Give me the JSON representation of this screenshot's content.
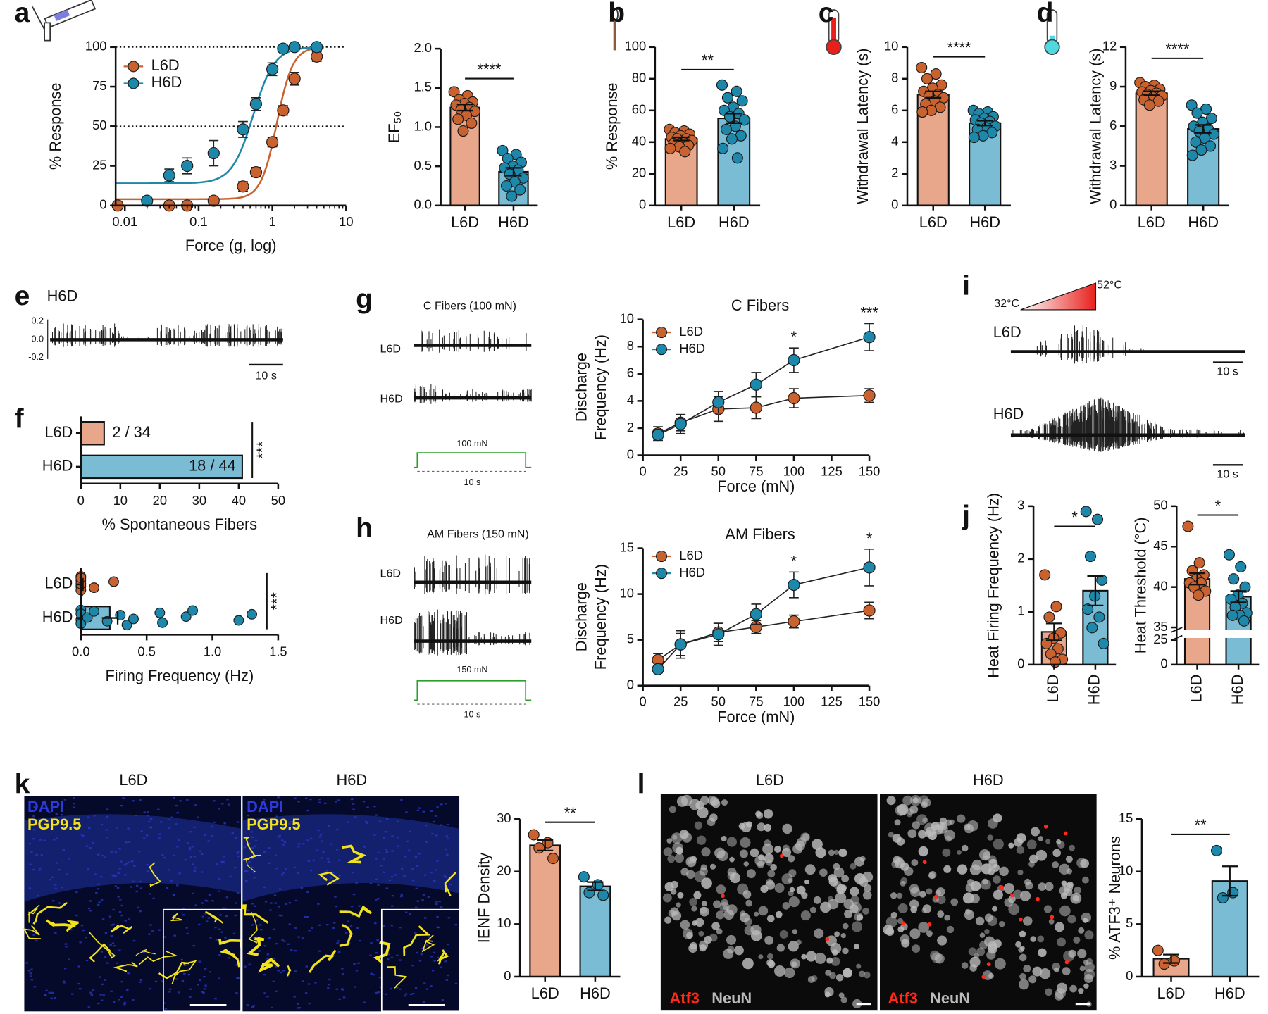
{
  "figure": {
    "panel_letters": [
      "a",
      "b",
      "c",
      "d",
      "e",
      "f",
      "g",
      "h",
      "i",
      "j",
      "k",
      "l"
    ],
    "e_trace": {
      "label": "H6D",
      "yticks": [
        "0.2",
        "0.0",
        "-0.2"
      ],
      "scale": "10 s"
    },
    "g_trace": {
      "title": "C Fibers (100 mN)",
      "rows": [
        "L6D",
        "H6D"
      ],
      "stimulus": "100 mN",
      "duration": "10 s"
    },
    "h_trace": {
      "title": "AM Fibers (150 mN)",
      "rows": [
        "L6D",
        "H6D"
      ],
      "stimulus": "150 mN",
      "duration": "10 s"
    },
    "i_trace": {
      "start": "32°C",
      "end": "52°C",
      "rows": [
        "L6D",
        "H6D"
      ],
      "scale": "10 s"
    },
    "k_images": {
      "titles": [
        "L6D",
        "H6D"
      ],
      "stains": [
        "DAPI",
        "PGP9.5"
      ]
    },
    "l_images": {
      "titles": [
        "L6D",
        "H6D"
      ],
      "stains": [
        "Atf3",
        "NeuN"
      ]
    }
  },
  "chart_data": [
    {
      "type": "line",
      "xscale": "log",
      "ylabel": "% Response",
      "xlabel": "Force (g, log)",
      "xlim": [
        0.0075,
        10
      ],
      "xticks": [
        0.01,
        0.1,
        1,
        10
      ],
      "ylim": [
        0,
        100
      ],
      "yticks": [
        0,
        25,
        50,
        75,
        100
      ],
      "reference_lines": [
        50,
        100
      ],
      "series": [
        {
          "name": "L6D",
          "color": "#c9622f",
          "x": [
            0.008,
            0.04,
            0.07,
            0.16,
            0.4,
            0.6,
            1,
            1.4,
            2,
            4
          ],
          "values": [
            0,
            0,
            0,
            3,
            12,
            21,
            40,
            60,
            80,
            94
          ],
          "errors": [
            0,
            0,
            0,
            0,
            3,
            3,
            3,
            3,
            4,
            3
          ],
          "fit": {
            "bottom": 4,
            "top": 100,
            "ec50": 1.15,
            "hill": 4
          }
        },
        {
          "name": "H6D",
          "color": "#1e88aa",
          "x": [
            0.02,
            0.04,
            0.07,
            0.16,
            0.4,
            0.6,
            1,
            1.4,
            2,
            4
          ],
          "values": [
            3,
            19,
            25,
            33,
            48,
            64,
            86,
            99,
            100,
            100
          ],
          "errors": [
            0,
            4,
            5,
            8,
            5,
            4,
            4,
            2,
            0,
            0
          ],
          "fit": {
            "bottom": 14,
            "top": 100,
            "ec50": 0.55,
            "hill": 3
          }
        }
      ]
    },
    {
      "type": "bar",
      "ylabel": "EF₅₀",
      "categories": [
        "L6D",
        "H6D"
      ],
      "values": [
        1.25,
        0.43
      ],
      "errors": [
        0.04,
        0.05
      ],
      "ylim": [
        0,
        2
      ],
      "yticks": [
        {
          "value": 0,
          "label": "0.0"
        },
        {
          "value": 0.5,
          "label": "0.5"
        },
        {
          "value": 1,
          "label": "1.0"
        },
        {
          "value": 1.5,
          "label": "1.5"
        },
        {
          "value": 2,
          "label": "2.0"
        }
      ],
      "colors": [
        "#e8a68a",
        "#79bcd3"
      ],
      "point_colors": [
        "#c9622f",
        "#1e88aa"
      ],
      "significance": "****",
      "points": [
        [
          1.45,
          1.4,
          1.35,
          1.32,
          1.3,
          1.28,
          1.25,
          1.22,
          1.2,
          1.15,
          1.1,
          1.05,
          0.95
        ],
        [
          0.7,
          0.65,
          0.6,
          0.55,
          0.5,
          0.48,
          0.45,
          0.4,
          0.35,
          0.3,
          0.25,
          0.2,
          0.12
        ]
      ]
    },
    {
      "type": "bar",
      "ylabel": "% Response",
      "categories": [
        "L6D",
        "H6D"
      ],
      "values": [
        42,
        55
      ],
      "errors": [
        1,
        3
      ],
      "ylim": [
        0,
        100
      ],
      "yticks": [
        0,
        20,
        40,
        60,
        80,
        100
      ],
      "colors": [
        "#e8a68a",
        "#79bcd3"
      ],
      "point_colors": [
        "#c9622f",
        "#1e88aa"
      ],
      "significance": "**",
      "points": [
        [
          48,
          47,
          46,
          45,
          44,
          43,
          42,
          42,
          41,
          40,
          39,
          38,
          37,
          36,
          34
        ],
        [
          76,
          72,
          68,
          66,
          62,
          60,
          58,
          56,
          54,
          50,
          48,
          44,
          42,
          36,
          30
        ]
      ]
    },
    {
      "type": "bar",
      "ylabel": "Withdrawal Latency (s)",
      "categories": [
        "L6D",
        "H6D"
      ],
      "values": [
        7.0,
        5.2
      ],
      "errors": [
        0.2,
        0.15
      ],
      "ylim": [
        0,
        10
      ],
      "yticks": [
        0,
        2,
        4,
        6,
        8,
        10
      ],
      "colors": [
        "#e8a68a",
        "#79bcd3"
      ],
      "point_colors": [
        "#c9622f",
        "#1e88aa"
      ],
      "significance": "****",
      "points": [
        [
          8.7,
          8.3,
          8.0,
          7.6,
          7.4,
          7.2,
          7.0,
          6.9,
          6.8,
          6.6,
          6.4,
          6.2,
          6.0,
          5.9
        ],
        [
          6.0,
          5.9,
          5.8,
          5.6,
          5.5,
          5.4,
          5.3,
          5.2,
          5.0,
          4.9,
          4.8,
          4.6,
          4.4,
          4.3
        ]
      ]
    },
    {
      "type": "bar",
      "ylabel": "Withdrawal Latency (s)",
      "categories": [
        "L6D",
        "H6D"
      ],
      "values": [
        8.5,
        5.8
      ],
      "errors": [
        0.15,
        0.3
      ],
      "ylim": [
        0,
        12
      ],
      "yticks": [
        0,
        3,
        6,
        9,
        12
      ],
      "colors": [
        "#e8a68a",
        "#79bcd3"
      ],
      "point_colors": [
        "#c9622f",
        "#1e88aa"
      ],
      "significance": "****",
      "points": [
        [
          9.3,
          9.1,
          9.0,
          8.8,
          8.7,
          8.6,
          8.5,
          8.4,
          8.3,
          8.2,
          8.0,
          7.9,
          7.6
        ],
        [
          7.6,
          7.3,
          7.0,
          6.6,
          6.3,
          6.0,
          5.8,
          5.6,
          5.4,
          5.1,
          4.8,
          4.5,
          4.2,
          3.8
        ]
      ]
    },
    {
      "type": "hbar",
      "xlabel": "% Spontaneous Fibers",
      "categories": [
        "L6D",
        "H6D"
      ],
      "values": [
        5.9,
        40.9
      ],
      "value_labels": [
        "2 / 34",
        "18 / 44"
      ],
      "xlim": [
        0,
        50
      ],
      "xticks": [
        0,
        10,
        20,
        30,
        40,
        50
      ],
      "colors": [
        "#e8a68a",
        "#79bcd3"
      ],
      "significance": "***"
    },
    {
      "type": "hbar",
      "xlabel": "Firing Frequency (Hz)",
      "categories": [
        "L6D",
        "H6D"
      ],
      "values": [
        0.01,
        0.22
      ],
      "errors": [
        0.005,
        0.06
      ],
      "xlim": [
        0,
        1.5
      ],
      "xticks": [
        {
          "value": 0,
          "label": "0.0"
        },
        {
          "value": 0.5,
          "label": "0.5"
        },
        {
          "value": 1,
          "label": "1.0"
        },
        {
          "value": 1.5,
          "label": "1.5"
        }
      ],
      "colors": [
        "#e8a68a",
        "#79bcd3"
      ],
      "point_colors": [
        "#c9622f",
        "#1e88aa"
      ],
      "significance": "***",
      "points": [
        [
          0,
          0,
          0,
          0,
          0,
          0,
          0.1,
          0.25
        ],
        [
          0,
          0,
          0,
          0,
          0.05,
          0.1,
          0.2,
          0.3,
          0.35,
          0.4,
          0.6,
          0.62,
          0.8,
          0.85,
          1.2,
          1.3
        ]
      ]
    },
    {
      "type": "line",
      "title": "C Fibers",
      "ylabel": [
        "Discharge",
        "Frequency (Hz)"
      ],
      "xlabel": "Force (mN)",
      "x": [
        10,
        25,
        50,
        75,
        100,
        150
      ],
      "xlim": [
        0,
        150
      ],
      "xticks": [
        0,
        25,
        50,
        75,
        100,
        125,
        150
      ],
      "ylim": [
        0,
        10
      ],
      "yticks": [
        0,
        2,
        4,
        6,
        8,
        10
      ],
      "series": [
        {
          "name": "L6D",
          "color": "#c9622f",
          "values": [
            1.6,
            2.4,
            3.4,
            3.5,
            4.2,
            4.4
          ],
          "errors": [
            0.5,
            0.6,
            0.9,
            0.8,
            0.7,
            0.5
          ]
        },
        {
          "name": "H6D",
          "color": "#1e88aa",
          "values": [
            1.5,
            2.3,
            3.9,
            5.2,
            7.0,
            8.7
          ],
          "errors": [
            0.4,
            0.7,
            0.8,
            0.9,
            0.9,
            1.0
          ]
        }
      ],
      "annotations": [
        {
          "x": 100,
          "text": "*"
        },
        {
          "x": 150,
          "text": "***"
        }
      ]
    },
    {
      "type": "line",
      "title": "AM Fibers",
      "ylabel": [
        "Discharge",
        "Frequency (Hz)"
      ],
      "xlabel": "Force (mN)",
      "x": [
        10,
        25,
        50,
        75,
        100,
        150
      ],
      "xlim": [
        0,
        150
      ],
      "xticks": [
        0,
        25,
        50,
        75,
        100,
        125,
        150
      ],
      "ylim": [
        0,
        15
      ],
      "yticks": [
        0,
        5,
        10,
        15
      ],
      "series": [
        {
          "name": "L6D",
          "color": "#c9622f",
          "values": [
            2.8,
            4.5,
            5.8,
            6.4,
            7.0,
            8.2
          ],
          "errors": [
            0.7,
            1.2,
            1.0,
            0.7,
            0.7,
            0.9
          ]
        },
        {
          "name": "H6D",
          "color": "#1e88aa",
          "values": [
            1.8,
            4.5,
            5.6,
            7.8,
            11.0,
            12.9
          ],
          "errors": [
            0.4,
            1.5,
            1.2,
            1.1,
            1.4,
            2.0
          ]
        }
      ],
      "annotations": [
        {
          "x": 100,
          "text": "*"
        },
        {
          "x": 150,
          "text": "*"
        }
      ]
    },
    {
      "type": "bar",
      "ylabel": "Heat Firing Frequency (Hz)",
      "rotate_labels": true,
      "categories": [
        "L6D",
        "H6D"
      ],
      "values": [
        0.62,
        1.4
      ],
      "errors": [
        0.16,
        0.28
      ],
      "ylim": [
        0,
        3
      ],
      "yticks": [
        0,
        1,
        2,
        3
      ],
      "colors": [
        "#e8a68a",
        "#79bcd3"
      ],
      "point_colors": [
        "#c9622f",
        "#1e88aa"
      ],
      "significance": "*",
      "points": [
        [
          1.7,
          1.1,
          0.9,
          0.6,
          0.5,
          0.4,
          0.3,
          0.2,
          0.1,
          0.05
        ],
        [
          2.9,
          2.75,
          2.05,
          1.6,
          1.3,
          1.05,
          0.9,
          0.7,
          0.4
        ]
      ]
    },
    {
      "type": "bar",
      "ylabel": "Heat Threshold (°C)",
      "rotate_labels": true,
      "axis_break": [
        25,
        35
      ],
      "categories": [
        "L6D",
        "H6D"
      ],
      "values": [
        41,
        38.8
      ],
      "errors": [
        0.7,
        0.7
      ],
      "ylim": [
        0,
        50
      ],
      "yticks": [
        0,
        25,
        35,
        40,
        45,
        50
      ],
      "colors": [
        "#e8a68a",
        "#79bcd3"
      ],
      "point_colors": [
        "#c9622f",
        "#1e88aa"
      ],
      "significance": "*",
      "points": [
        [
          47.5,
          43,
          42,
          41.5,
          41,
          40.5,
          40.5,
          40,
          39.5,
          39
        ],
        [
          44,
          42.5,
          41,
          40,
          39,
          38.5,
          38,
          37.5,
          36.8,
          36.5,
          36.5,
          35.8
        ]
      ]
    },
    {
      "type": "bar",
      "ylabel": "IENF Density",
      "categories": [
        "L6D",
        "H6D"
      ],
      "values": [
        25,
        17.2
      ],
      "errors": [
        1,
        0.8
      ],
      "ylim": [
        0,
        30
      ],
      "yticks": [
        0,
        10,
        20,
        30
      ],
      "colors": [
        "#e8a68a",
        "#79bcd3"
      ],
      "point_colors": [
        "#c9622f",
        "#1e88aa"
      ],
      "significance": "**",
      "points": [
        [
          27,
          25.5,
          24.5,
          22.5
        ],
        [
          19,
          17.5,
          16,
          15.5
        ]
      ]
    },
    {
      "type": "bar",
      "ylabel": "% ATF3⁺ Neurons",
      "categories": [
        "L6D",
        "H6D"
      ],
      "values": [
        1.7,
        9.1
      ],
      "errors": [
        0.4,
        1.4
      ],
      "ylim": [
        0,
        15
      ],
      "yticks": [
        0,
        5,
        10,
        15
      ],
      "colors": [
        "#e8a68a",
        "#79bcd3"
      ],
      "point_colors": [
        "#c9622f",
        "#1e88aa"
      ],
      "significance": "**",
      "points": [
        [
          2.5,
          1.5,
          1.2
        ],
        [
          12,
          8,
          7.5
        ]
      ]
    }
  ]
}
